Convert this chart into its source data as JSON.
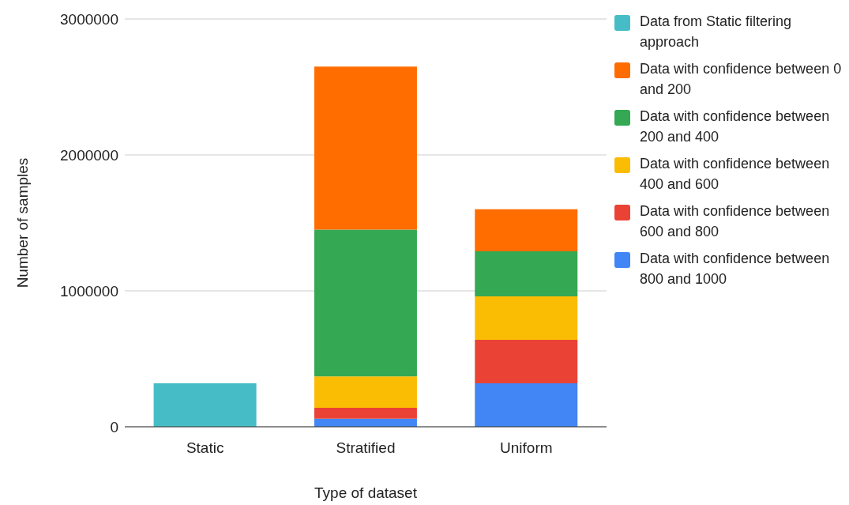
{
  "chart_data": {
    "type": "bar",
    "stacked": true,
    "xlabel": "Type of dataset",
    "ylabel": "Number of samples",
    "categories": [
      "Static",
      "Stratified",
      "Uniform"
    ],
    "series": [
      {
        "name": "Data with confidence between 800 and 1000",
        "color": "#4285f4",
        "values": [
          null,
          60000,
          320000
        ]
      },
      {
        "name": "Data with confidence between 600 and 800",
        "color": "#ea4335",
        "values": [
          null,
          80000,
          320000
        ]
      },
      {
        "name": "Data with confidence between 400 and 600",
        "color": "#fbbc04",
        "values": [
          null,
          230000,
          320000
        ]
      },
      {
        "name": "Data with confidence between 200 and 400",
        "color": "#34a853",
        "values": [
          null,
          1080000,
          330000
        ]
      },
      {
        "name": "Data with confidence between 0 and 200",
        "color": "#ff6d01",
        "values": [
          null,
          1200000,
          310000
        ]
      },
      {
        "name": "Data from Static filtering approach",
        "color": "#46bdc6",
        "values": [
          320000,
          null,
          null
        ]
      }
    ],
    "ylim": [
      0,
      3000000
    ],
    "yticks": [
      0,
      1000000,
      2000000,
      3000000
    ],
    "grid": "y",
    "legend": "right"
  }
}
